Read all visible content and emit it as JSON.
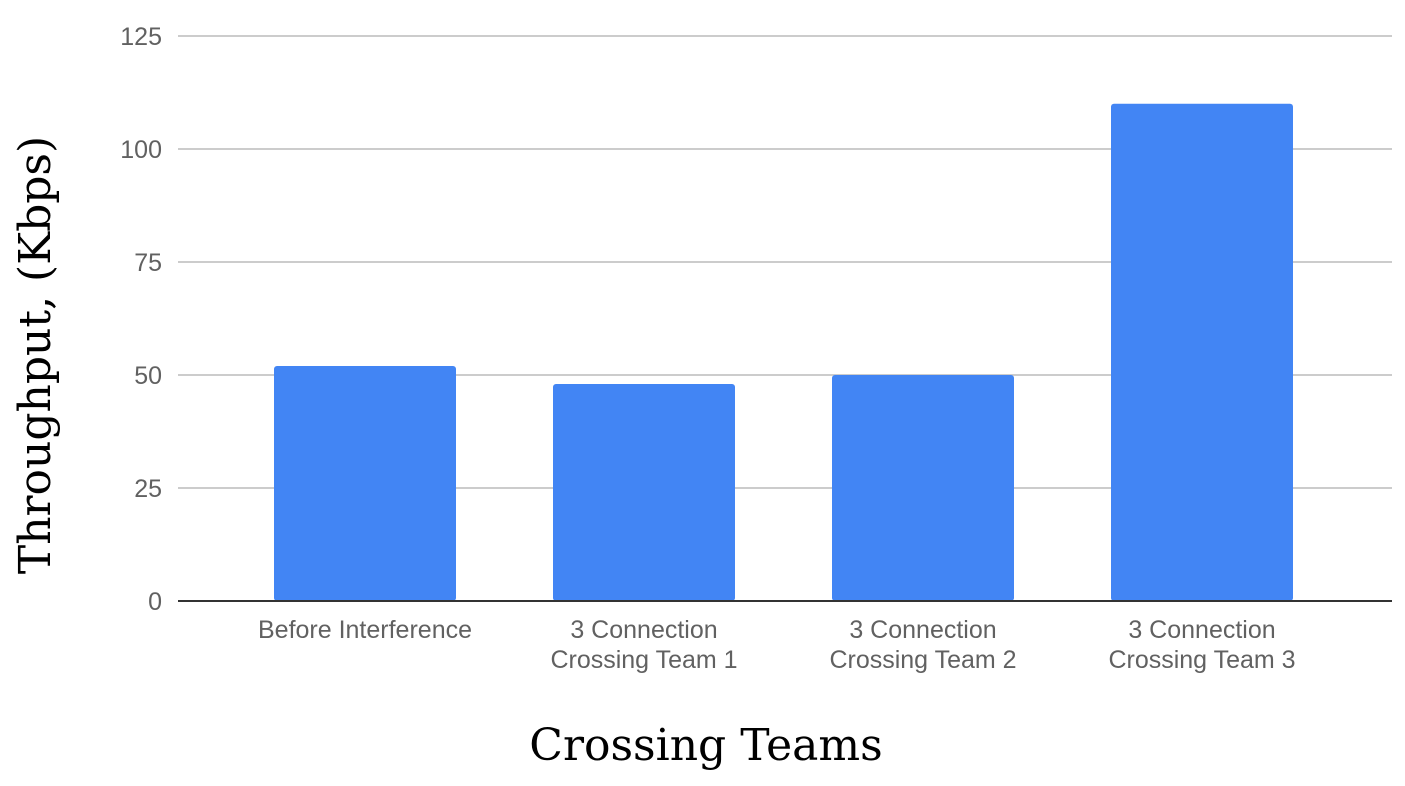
{
  "chart_data": {
    "type": "bar",
    "title": "",
    "xlabel": "Crossing Teams",
    "ylabel": "Throughput, (Kbps)",
    "categories": [
      [
        "Before Interference"
      ],
      [
        "3 Connection",
        "Crossing Team 1"
      ],
      [
        "3 Connection",
        "Crossing Team 2"
      ],
      [
        "3 Connection",
        "Crossing Team 3"
      ]
    ],
    "values": [
      52,
      48,
      50,
      110
    ],
    "ylim": [
      0,
      125
    ],
    "yticks": [
      "0",
      "25",
      "50",
      "75",
      "100",
      "125"
    ],
    "grid": true,
    "legend": "none",
    "bar_color": "#4285f4"
  }
}
